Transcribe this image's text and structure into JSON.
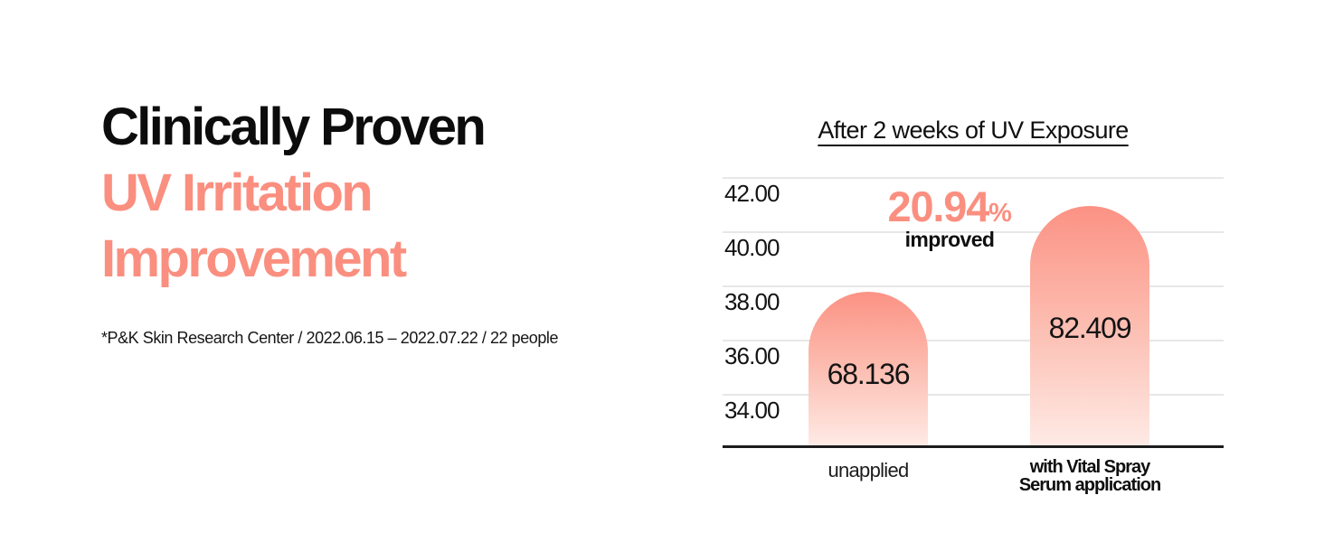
{
  "headline": {
    "line1": "Clinically Proven",
    "line2": "UV Irritation",
    "line3": "Improvement"
  },
  "footnote": "*P&K Skin Research Center / 2022.06.15 – 2022.07.22 / 22 people",
  "chart": {
    "title": "After 2 weeks of UV Exposure",
    "improvement_value": "20.94",
    "improvement_unit": "%",
    "improvement_label": "improved",
    "y_ticks": [
      "42.00",
      "40.00",
      "38.00",
      "36.00",
      "34.00"
    ],
    "bars": [
      {
        "value": "68.136",
        "label": "unapplied"
      },
      {
        "value": "82.409",
        "label_line1": "with Vital Spray",
        "label_line2": "Serum application"
      }
    ]
  },
  "colors": {
    "accent_coral": "#fa8f80",
    "bar_gradient_top": "#fb9284",
    "bar_gradient_bottom": "#feeae5",
    "gridline": "#e7e7e7",
    "axis": "#1c1c1c",
    "text": "#0d0d0d"
  },
  "chart_data": {
    "type": "bar",
    "title": "After 2 weeks of UV Exposure",
    "categories": [
      "unapplied",
      "with Vital Spray Serum application"
    ],
    "values": [
      68.136,
      82.409
    ],
    "data_labels": [
      "68.136",
      "82.409"
    ],
    "annotation": "20.94% improved",
    "y_axis_tick_labels": [
      42.0,
      40.0,
      38.0,
      36.0,
      34.0
    ],
    "ylim": [
      32,
      43.5
    ],
    "grid": true,
    "legend": false,
    "bar_style": "rounded-top bars with vertical coral-to-white gradient; bar heights are decorative and not to y-axis scale"
  }
}
